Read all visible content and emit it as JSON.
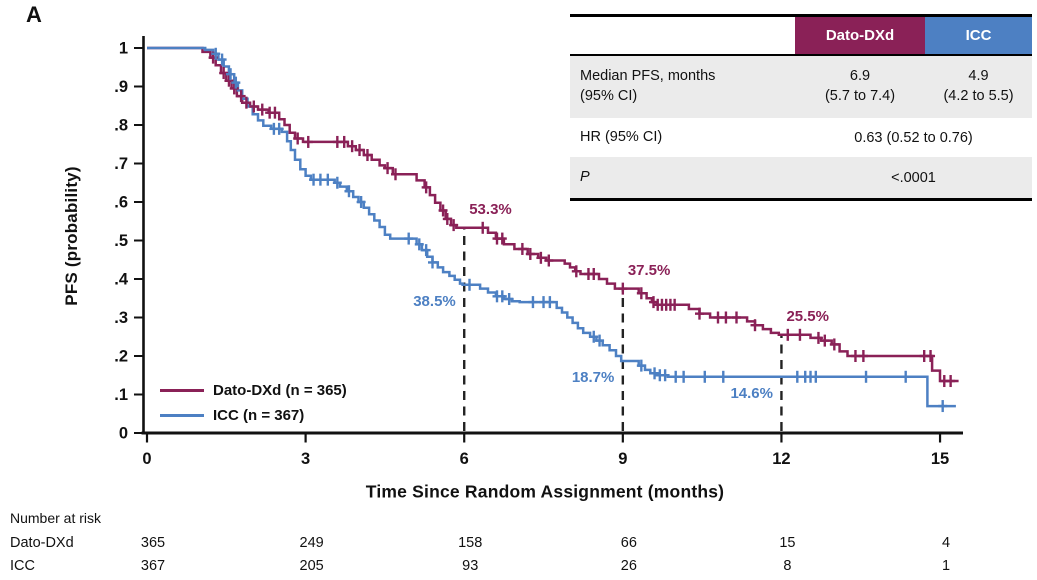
{
  "panel_label": "A",
  "colors": {
    "dato": "#8a2157",
    "icc": "#4d80c3",
    "shade": "#ebebeb",
    "axis": "#111111"
  },
  "stats_table": {
    "columns": [
      "Dato-DXd",
      "ICC"
    ],
    "rows": [
      {
        "label": "Median PFS, months",
        "label2": "(95% CI)",
        "dato": "6.9",
        "dato2": "(5.7 to 7.4)",
        "icc": "4.9",
        "icc2": "(4.2 to 5.5)"
      },
      {
        "label": "HR (95% CI)",
        "merged": "0.63 (0.52 to 0.76)"
      },
      {
        "label": "P",
        "merged": "<.0001"
      }
    ]
  },
  "legend": {
    "items": [
      {
        "label": "Dato-DXd (n = 365)",
        "color": "#8a2157"
      },
      {
        "label": "ICC (n = 367)",
        "color": "#4d80c3"
      }
    ]
  },
  "chart_data": {
    "type": "line",
    "subtype": "kaplan-meier-step",
    "xlabel": "Time Since Random Assignment (months)",
    "ylabel": "PFS (probability)",
    "xlim": [
      0,
      15.5
    ],
    "ylim": [
      0,
      1
    ],
    "x_ticks": [
      0,
      3,
      6,
      9,
      12,
      15
    ],
    "x_tick_labels": [
      "0",
      "3",
      "6",
      "9",
      "12",
      "15"
    ],
    "y_ticks": [
      0,
      0.1,
      0.2,
      0.3,
      0.4,
      0.5,
      0.6,
      0.7,
      0.8,
      0.9,
      1
    ],
    "y_tick_labels": [
      "0",
      ".1",
      ".2",
      ".3",
      ".4",
      ".5",
      ".6",
      ".7",
      ".8",
      ".9",
      "1"
    ],
    "grid": false,
    "legend_position": "lower-left",
    "series": [
      {
        "name": "Dato-DXd (n = 365)",
        "color": "#8a2157",
        "steps": [
          [
            0,
            1.0
          ],
          [
            1.05,
            0.99
          ],
          [
            1.2,
            0.975
          ],
          [
            1.3,
            0.955
          ],
          [
            1.4,
            0.935
          ],
          [
            1.5,
            0.915
          ],
          [
            1.6,
            0.895
          ],
          [
            1.7,
            0.875
          ],
          [
            1.8,
            0.858
          ],
          [
            1.95,
            0.848
          ],
          [
            2.1,
            0.84
          ],
          [
            2.3,
            0.832
          ],
          [
            2.5,
            0.815
          ],
          [
            2.6,
            0.8
          ],
          [
            2.7,
            0.78
          ],
          [
            2.8,
            0.765
          ],
          [
            2.95,
            0.756
          ],
          [
            3.8,
            0.745
          ],
          [
            3.95,
            0.735
          ],
          [
            4.1,
            0.722
          ],
          [
            4.25,
            0.71
          ],
          [
            4.4,
            0.695
          ],
          [
            4.5,
            0.688
          ],
          [
            4.65,
            0.672
          ],
          [
            5.1,
            0.656
          ],
          [
            5.25,
            0.638
          ],
          [
            5.35,
            0.618
          ],
          [
            5.45,
            0.598
          ],
          [
            5.55,
            0.578
          ],
          [
            5.65,
            0.556
          ],
          [
            5.75,
            0.54
          ],
          [
            5.85,
            0.533
          ],
          [
            6.45,
            0.52
          ],
          [
            6.6,
            0.505
          ],
          [
            6.75,
            0.49
          ],
          [
            6.95,
            0.478
          ],
          [
            7.2,
            0.465
          ],
          [
            7.4,
            0.455
          ],
          [
            7.55,
            0.448
          ],
          [
            7.9,
            0.44
          ],
          [
            8.0,
            0.43
          ],
          [
            8.1,
            0.42
          ],
          [
            8.2,
            0.413
          ],
          [
            8.55,
            0.4
          ],
          [
            8.7,
            0.388
          ],
          [
            8.85,
            0.375
          ],
          [
            9.3,
            0.363
          ],
          [
            9.45,
            0.35
          ],
          [
            9.55,
            0.34
          ],
          [
            9.65,
            0.333
          ],
          [
            10.25,
            0.322
          ],
          [
            10.45,
            0.31
          ],
          [
            10.65,
            0.3
          ],
          [
            11.35,
            0.29
          ],
          [
            11.5,
            0.28
          ],
          [
            11.65,
            0.27
          ],
          [
            11.8,
            0.26
          ],
          [
            11.95,
            0.255
          ],
          [
            12.55,
            0.247
          ],
          [
            12.75,
            0.24
          ],
          [
            12.95,
            0.23
          ],
          [
            13.1,
            0.212
          ],
          [
            13.25,
            0.2
          ],
          [
            14.85,
            0.162
          ],
          [
            15.0,
            0.135
          ]
        ],
        "end_time": 15.35,
        "censor_months": [
          1.25,
          1.45,
          1.55,
          1.65,
          1.78,
          1.88,
          2.02,
          2.18,
          2.32,
          2.42,
          2.85,
          3.05,
          3.6,
          3.73,
          3.88,
          4.02,
          4.17,
          4.55,
          4.7,
          5.28,
          5.6,
          5.68,
          5.8,
          6.35,
          6.62,
          6.72,
          7.1,
          7.25,
          7.45,
          7.6,
          8.12,
          8.35,
          8.45,
          9.0,
          9.35,
          9.58,
          9.66,
          9.74,
          9.82,
          9.9,
          9.98,
          10.45,
          10.8,
          10.95,
          11.15,
          11.5,
          12.12,
          12.35,
          12.7,
          12.82,
          13.0,
          13.4,
          13.55,
          14.7,
          14.82,
          15.08,
          15.2
        ]
      },
      {
        "name": "ICC (n = 367)",
        "color": "#4d80c3",
        "steps": [
          [
            0,
            1.0
          ],
          [
            1.1,
            0.995
          ],
          [
            1.25,
            0.985
          ],
          [
            1.35,
            0.97
          ],
          [
            1.45,
            0.952
          ],
          [
            1.55,
            0.932
          ],
          [
            1.65,
            0.91
          ],
          [
            1.72,
            0.89
          ],
          [
            1.8,
            0.868
          ],
          [
            1.9,
            0.848
          ],
          [
            2.0,
            0.828
          ],
          [
            2.1,
            0.812
          ],
          [
            2.2,
            0.798
          ],
          [
            2.35,
            0.79
          ],
          [
            2.55,
            0.782
          ],
          [
            2.65,
            0.758
          ],
          [
            2.72,
            0.735
          ],
          [
            2.8,
            0.71
          ],
          [
            2.9,
            0.685
          ],
          [
            3.0,
            0.668
          ],
          [
            3.1,
            0.658
          ],
          [
            3.55,
            0.65
          ],
          [
            3.65,
            0.64
          ],
          [
            3.78,
            0.628
          ],
          [
            3.9,
            0.613
          ],
          [
            4.0,
            0.6
          ],
          [
            4.1,
            0.585
          ],
          [
            4.2,
            0.568
          ],
          [
            4.3,
            0.552
          ],
          [
            4.4,
            0.535
          ],
          [
            4.5,
            0.515
          ],
          [
            4.6,
            0.505
          ],
          [
            5.1,
            0.49
          ],
          [
            5.2,
            0.475
          ],
          [
            5.3,
            0.458
          ],
          [
            5.4,
            0.443
          ],
          [
            5.5,
            0.43
          ],
          [
            5.6,
            0.418
          ],
          [
            5.72,
            0.408
          ],
          [
            5.82,
            0.398
          ],
          [
            5.92,
            0.388
          ],
          [
            5.97,
            0.385
          ],
          [
            6.3,
            0.375
          ],
          [
            6.45,
            0.365
          ],
          [
            6.6,
            0.355
          ],
          [
            6.75,
            0.348
          ],
          [
            6.9,
            0.342
          ],
          [
            7.05,
            0.34
          ],
          [
            7.75,
            0.325
          ],
          [
            7.85,
            0.313
          ],
          [
            7.95,
            0.3
          ],
          [
            8.05,
            0.286
          ],
          [
            8.15,
            0.272
          ],
          [
            8.25,
            0.26
          ],
          [
            8.38,
            0.25
          ],
          [
            8.5,
            0.24
          ],
          [
            8.62,
            0.228
          ],
          [
            8.75,
            0.215
          ],
          [
            8.87,
            0.2
          ],
          [
            8.97,
            0.187
          ],
          [
            9.3,
            0.175
          ],
          [
            9.42,
            0.164
          ],
          [
            9.52,
            0.155
          ],
          [
            9.65,
            0.15
          ],
          [
            9.85,
            0.146
          ],
          [
            14.76,
            0.07
          ]
        ],
        "end_time": 15.3,
        "censor_months": [
          1.3,
          1.42,
          1.58,
          1.68,
          2.4,
          2.5,
          3.15,
          3.28,
          3.42,
          3.6,
          3.82,
          4.05,
          4.95,
          5.15,
          5.28,
          5.4,
          6.1,
          6.62,
          6.72,
          6.85,
          7.3,
          7.5,
          7.62,
          8.45,
          8.56,
          9.35,
          9.6,
          9.7,
          9.8,
          10.0,
          10.15,
          10.55,
          10.9,
          12.3,
          12.45,
          12.55,
          12.65,
          13.6,
          14.35,
          15.05
        ]
      }
    ],
    "dashed_markers": [
      {
        "month": 6,
        "to_value": 0.533
      },
      {
        "month": 9,
        "to_value": 0.375
      },
      {
        "month": 12,
        "to_value": 0.255
      }
    ],
    "annotations": [
      {
        "series": 0,
        "text": "53.3%",
        "month": 6,
        "value": 0.533
      },
      {
        "series": 1,
        "text": "38.5%",
        "month": 6,
        "value": 0.385
      },
      {
        "series": 0,
        "text": "37.5%",
        "month": 9,
        "value": 0.375
      },
      {
        "series": 1,
        "text": "18.7%",
        "month": 9,
        "value": 0.187
      },
      {
        "series": 0,
        "text": "25.5%",
        "month": 12,
        "value": 0.255
      },
      {
        "series": 1,
        "text": "14.6%",
        "month": 12,
        "value": 0.146
      }
    ]
  },
  "risk_table": {
    "title": "Number at risk",
    "time_points": [
      0,
      3,
      6,
      9,
      12,
      15
    ],
    "rows": [
      {
        "label": "Dato-DXd",
        "counts": [
          "365",
          "249",
          "158",
          "66",
          "15",
          "4"
        ]
      },
      {
        "label": "ICC",
        "counts": [
          "367",
          "205",
          "93",
          "26",
          "8",
          "1"
        ]
      }
    ]
  }
}
